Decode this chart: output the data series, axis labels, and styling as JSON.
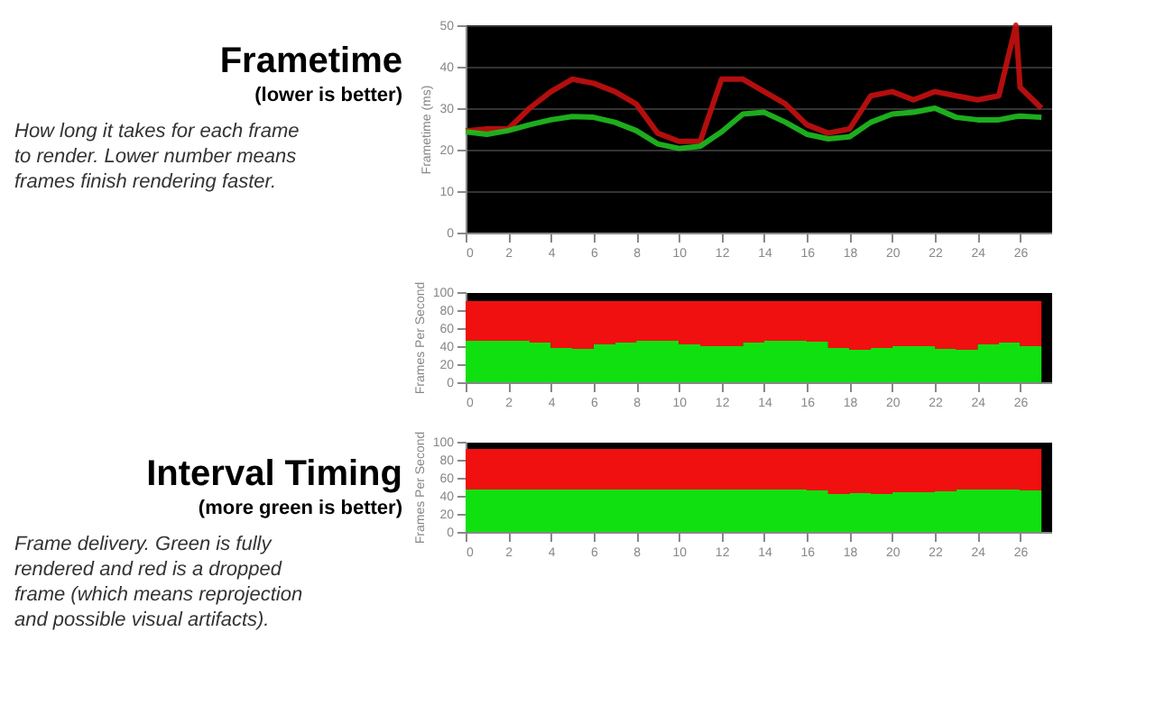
{
  "chart_data": [
    {
      "type": "line",
      "title": "Frametime",
      "subtitle": "(lower is better)",
      "annotations": [
        "How long it takes for each frame to render. Lower number means frames finish rendering faster."
      ],
      "ylabel": "Frametime (ms)",
      "x": [
        0,
        1,
        2,
        3,
        4,
        5,
        6,
        7,
        8,
        9,
        10,
        11,
        12,
        13,
        14,
        15,
        16,
        17,
        18,
        19,
        20,
        21,
        22,
        23,
        24,
        25,
        25.8,
        26,
        27
      ],
      "series": [
        {
          "color": "#c81010",
          "values": [
            24.5,
            25,
            25,
            30,
            34,
            37,
            36,
            34,
            31,
            24,
            22,
            22,
            37,
            37,
            34,
            31,
            26,
            24,
            25,
            33,
            34,
            32,
            34,
            33,
            32,
            33,
            50,
            35,
            30
          ]
        },
        {
          "color": "#20c020",
          "values": [
            24.3,
            23.7,
            24.6,
            26,
            27.2,
            28,
            27.8,
            26.6,
            24.6,
            21.4,
            20.3,
            20.8,
            24.3,
            28.6,
            29,
            26.6,
            23.7,
            22.6,
            23.1,
            26.6,
            28.6,
            29,
            30,
            27.8,
            27.2,
            27.2,
            28,
            28.1,
            27.8
          ]
        }
      ],
      "xlim": [
        0,
        27.5
      ],
      "xticks": [
        0,
        2,
        4,
        6,
        8,
        10,
        12,
        14,
        16,
        18,
        20,
        22,
        24,
        26
      ],
      "ylim": [
        0,
        50
      ],
      "yticks": [
        0,
        10,
        20,
        30,
        40,
        50
      ],
      "grid": "y"
    },
    {
      "type": "area",
      "stacked": true,
      "title": "Interval Timing",
      "subtitle": "(more green is better)",
      "annotations": [
        "Frame delivery. Green is fully rendered and red is a dropped frame (which means reprojection and possible visual artifacts)."
      ],
      "ylabel": "Frames Per Second",
      "x": [
        0,
        1,
        2,
        3,
        4,
        5,
        6,
        7,
        8,
        9,
        10,
        11,
        12,
        13,
        14,
        15,
        16,
        17,
        18,
        19,
        20,
        21,
        22,
        23,
        24,
        25,
        26,
        27
      ],
      "series": [
        {
          "color": "#10e010",
          "values": [
            46,
            46,
            46,
            44,
            38,
            37,
            42,
            44,
            46,
            46,
            42,
            40,
            40,
            44,
            46,
            46,
            45,
            38,
            36,
            38,
            40,
            40,
            37,
            36,
            42,
            44,
            40,
            46
          ]
        },
        {
          "color": "#f01010",
          "values": [
            44,
            44,
            44,
            46,
            52,
            53,
            48,
            46,
            44,
            44,
            48,
            50,
            50,
            46,
            44,
            44,
            45,
            52,
            54,
            52,
            50,
            50,
            53,
            54,
            48,
            46,
            50,
            44
          ]
        }
      ],
      "xlim": [
        0,
        27.5
      ],
      "xticks": [
        0,
        2,
        4,
        6,
        8,
        10,
        12,
        14,
        16,
        18,
        20,
        22,
        24,
        26
      ],
      "ylim": [
        0,
        100
      ],
      "yticks": [
        0,
        20,
        40,
        60,
        80,
        100
      ]
    },
    {
      "type": "area",
      "stacked": true,
      "ylabel": "Frames Per Second",
      "x": [
        0,
        1,
        2,
        3,
        4,
        5,
        6,
        7,
        8,
        9,
        10,
        11,
        12,
        13,
        14,
        15,
        16,
        17,
        18,
        19,
        20,
        21,
        22,
        23,
        24,
        25,
        26,
        27
      ],
      "series": [
        {
          "color": "#10e010",
          "values": [
            47,
            47,
            47,
            47,
            47,
            47,
            47,
            47,
            47,
            47,
            47,
            47,
            47,
            47,
            47,
            47,
            46,
            42,
            43,
            42,
            44,
            44,
            45,
            47,
            47,
            47,
            46,
            47
          ]
        },
        {
          "color": "#f01010",
          "values": [
            45,
            45,
            45,
            45,
            45,
            45,
            45,
            45,
            45,
            45,
            45,
            45,
            45,
            45,
            45,
            45,
            46,
            50,
            49,
            50,
            48,
            48,
            47,
            45,
            45,
            45,
            46,
            45
          ]
        }
      ],
      "xlim": [
        0,
        27.5
      ],
      "xticks": [
        0,
        2,
        4,
        6,
        8,
        10,
        12,
        14,
        16,
        18,
        20,
        22,
        24,
        26
      ],
      "ylim": [
        0,
        100
      ],
      "yticks": [
        0,
        20,
        40,
        60,
        80,
        100
      ]
    }
  ]
}
